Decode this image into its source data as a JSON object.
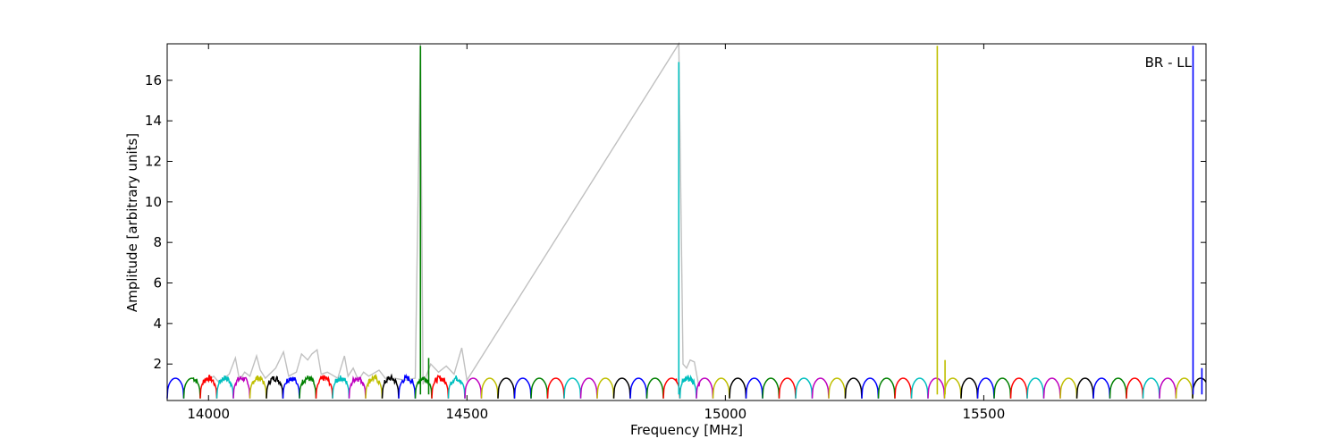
{
  "chart_data": {
    "type": "line",
    "title": "",
    "annotation": "BR - LL",
    "xlabel": "Frequency [MHz]",
    "ylabel": "Amplitude [arbitrary units]",
    "xlim": [
      13920,
      15930
    ],
    "ylim": [
      0.2,
      17.8
    ],
    "xticks": [
      14000,
      14500,
      15000,
      15500
    ],
    "yticks": [
      2,
      4,
      6,
      8,
      10,
      12,
      14,
      16
    ],
    "grid": false,
    "legend": "none",
    "band": {
      "start": 13920,
      "width": 32,
      "low": 0.3,
      "high": 1.3,
      "colors": [
        "#0000ff",
        "#008000",
        "#ff0000",
        "#00bfbf",
        "#bf00bf",
        "#bfbf00",
        "#000000"
      ]
    },
    "background_series": {
      "name": "raw",
      "color": "#c0c0c0",
      "points": [
        [
          14000,
          1.2
        ],
        [
          14010,
          1.4
        ],
        [
          14020,
          1.1
        ],
        [
          14040,
          1.5
        ],
        [
          14052,
          2.3
        ],
        [
          14060,
          1.2
        ],
        [
          14070,
          1.6
        ],
        [
          14080,
          1.4
        ],
        [
          14093,
          2.4
        ],
        [
          14100,
          1.7
        ],
        [
          14110,
          1.3
        ],
        [
          14130,
          1.8
        ],
        [
          14145,
          2.6
        ],
        [
          14155,
          1.4
        ],
        [
          14170,
          1.6
        ],
        [
          14180,
          2.5
        ],
        [
          14192,
          2.2
        ],
        [
          14200,
          2.5
        ],
        [
          14210,
          2.7
        ],
        [
          14218,
          1.5
        ],
        [
          14230,
          1.6
        ],
        [
          14250,
          1.3
        ],
        [
          14263,
          2.4
        ],
        [
          14270,
          1.4
        ],
        [
          14280,
          1.8
        ],
        [
          14290,
          1.2
        ],
        [
          14300,
          1.6
        ],
        [
          14310,
          1.4
        ],
        [
          14330,
          1.7
        ],
        [
          14345,
          1.2
        ],
        [
          14360,
          1.3
        ],
        [
          14380,
          1.2
        ],
        [
          14400,
          1.3
        ],
        [
          14410,
          17.8
        ],
        [
          14415,
          1.0
        ],
        [
          14430,
          2.0
        ],
        [
          14445,
          1.6
        ],
        [
          14460,
          1.9
        ],
        [
          14475,
          1.5
        ],
        [
          14490,
          2.8
        ],
        [
          14500,
          1.2
        ],
        [
          14910,
          17.8
        ],
        [
          14918,
          2.0
        ],
        [
          14925,
          1.8
        ],
        [
          14932,
          2.2
        ],
        [
          14940,
          2.1
        ],
        [
          14948,
          1.0
        ]
      ]
    },
    "spikes": [
      {
        "x": 14410,
        "y": 17.7,
        "color": "#008000"
      },
      {
        "x": 14910,
        "y": 16.9,
        "color": "#00bfbf"
      },
      {
        "x": 15410,
        "y": 17.7,
        "color": "#bfbf00"
      },
      {
        "x": 15905,
        "y": 17.7,
        "color": "#0000ff"
      }
    ],
    "minor_spikes": [
      {
        "x": 14426,
        "y": 2.3,
        "color": "#008000"
      },
      {
        "x": 15425,
        "y": 2.2,
        "color": "#bfbf00"
      },
      {
        "x": 15922,
        "y": 1.8,
        "color": "#0000ff"
      }
    ],
    "noisy_regions": [
      {
        "x0": 13970,
        "x1": 14490,
        "amplitude": 0.3
      },
      {
        "x0": 14905,
        "x1": 14950,
        "amplitude": 0.4
      }
    ]
  }
}
